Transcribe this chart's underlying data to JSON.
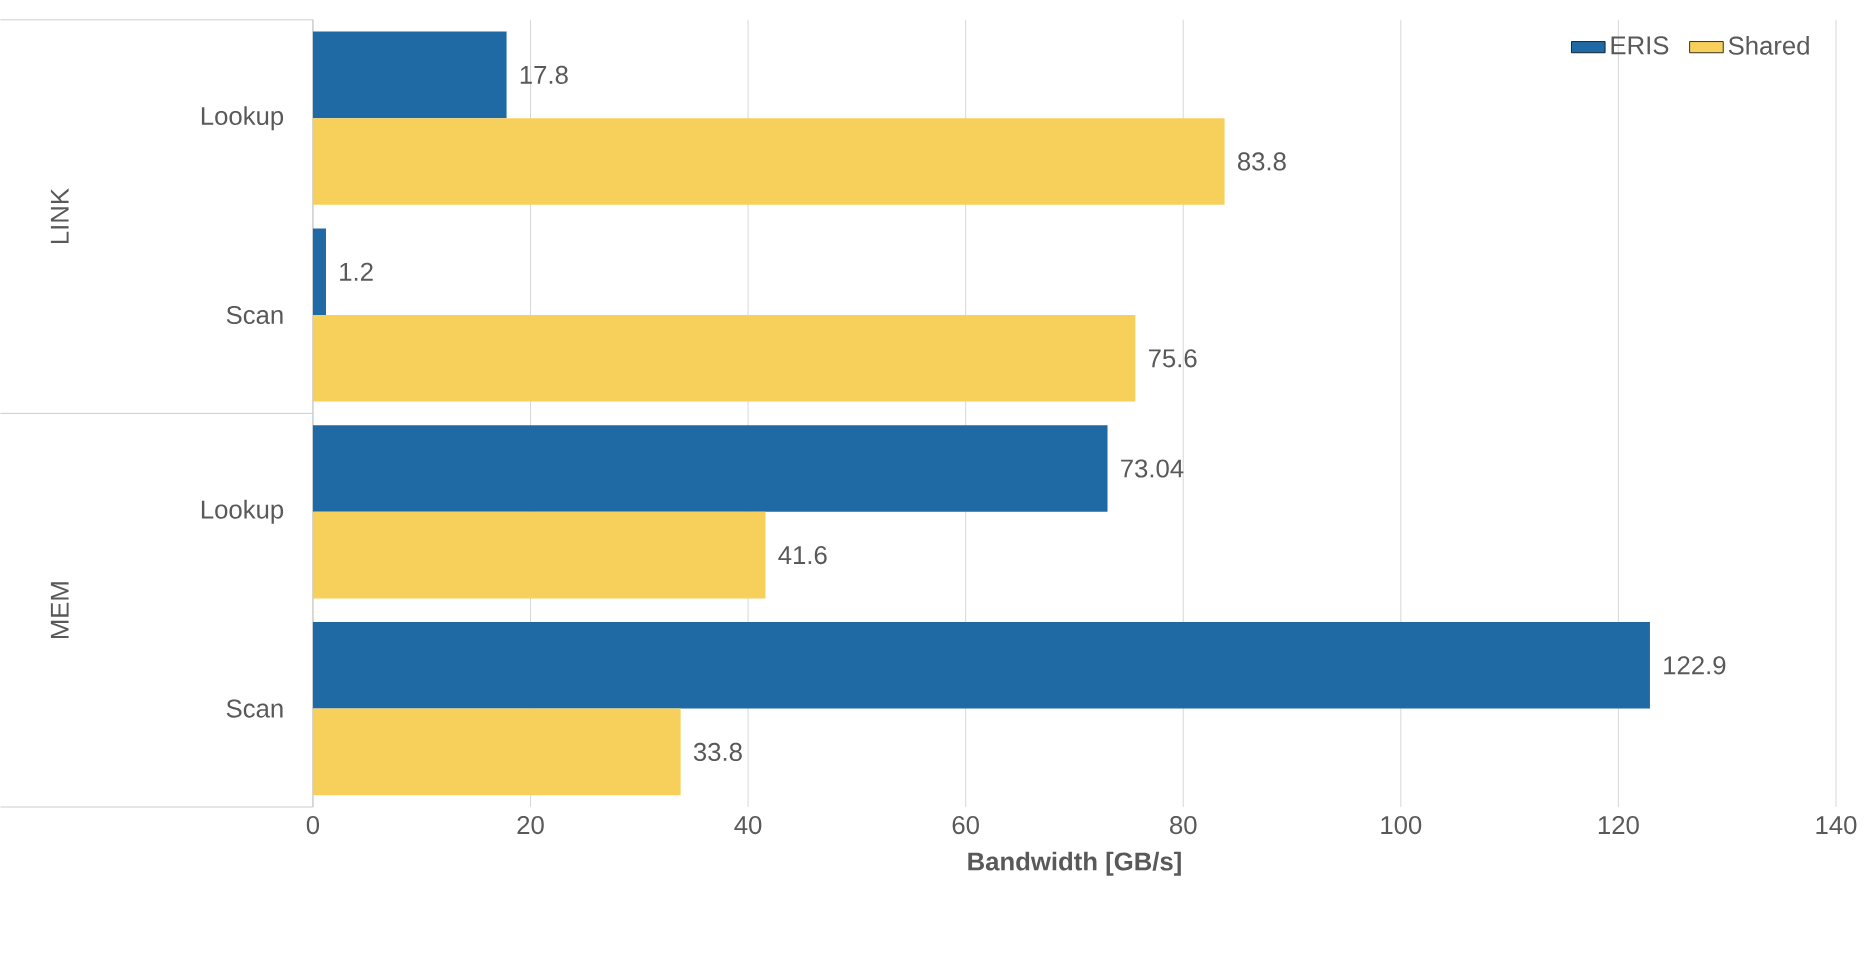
{
  "chart_data": {
    "type": "bar",
    "orientation": "horizontal",
    "categories": [
      "Lookup",
      "Scan",
      "Lookup",
      "Scan"
    ],
    "series": [
      {
        "name": "ERIS",
        "color": "#1f6aa5",
        "values": [
          17.8,
          1.2,
          73.04,
          122.9
        ]
      },
      {
        "name": "Shared",
        "color": "#f7d05c",
        "values": [
          83.8,
          75.6,
          41.6,
          33.8
        ]
      }
    ],
    "xlabel": "Bandwidth [GB/s]",
    "xlim": [
      0,
      140
    ],
    "xticks": [
      0,
      20,
      40,
      60,
      80,
      100,
      120,
      140
    ],
    "annotations": [
      "LINK",
      "MEM"
    ],
    "data_labels": true,
    "grid": "x",
    "legend": "top right"
  }
}
